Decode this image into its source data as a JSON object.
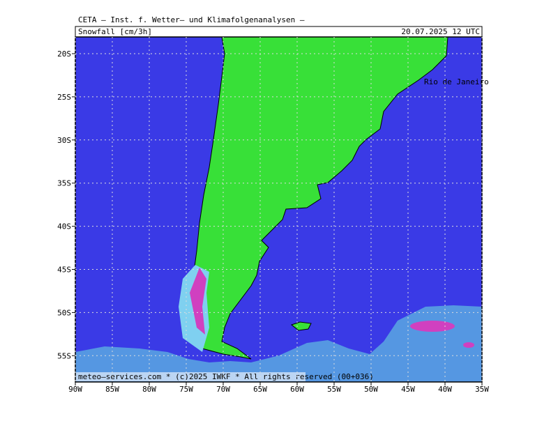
{
  "header": {
    "institute": "CETA – Inst. f. Wetter– und Klimafolgenanalysen –",
    "field": "Snowfall [cm/3h]",
    "datetime": "20.07.2025 12 UTC"
  },
  "axis": {
    "lat_labels": [
      "20S",
      "25S",
      "30S",
      "35S",
      "40S",
      "45S",
      "50S",
      "55S"
    ],
    "lon_labels": [
      "90W",
      "85W",
      "80W",
      "75W",
      "70W",
      "65W",
      "60W",
      "55W",
      "50W",
      "45W",
      "40W",
      "35W"
    ]
  },
  "map": {
    "places": [
      "Rio de Janeiro"
    ]
  },
  "footer": "meteo–services.com * (c)2025 IWKF * All rights reserved (00+036)"
}
